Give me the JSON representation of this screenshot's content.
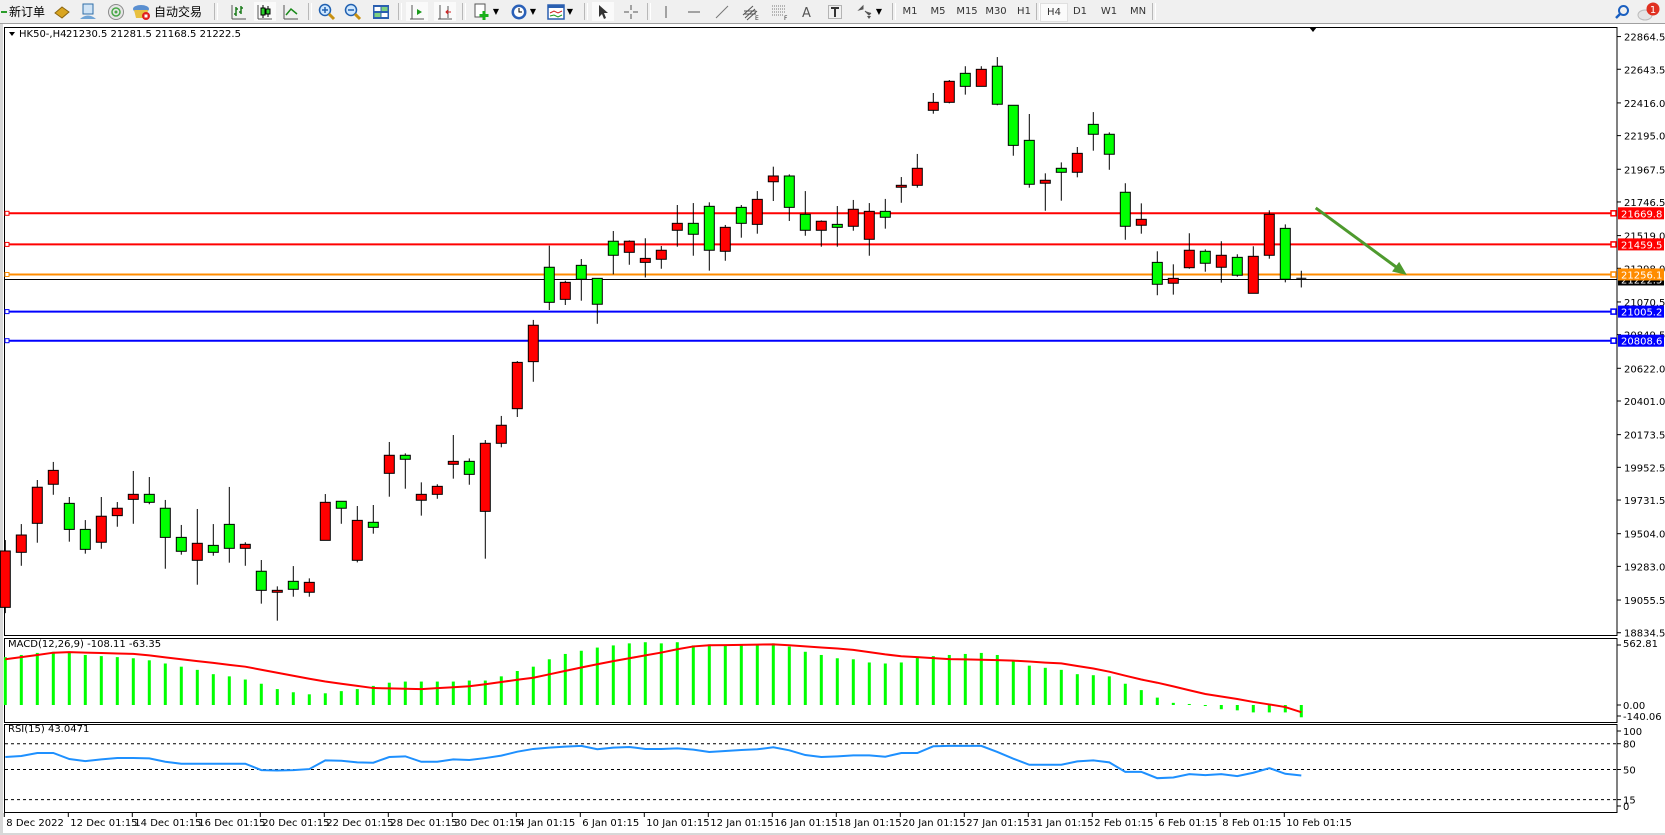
{
  "toolbar": {
    "new_order_label": "新订单",
    "auto_trading_label": "自动交易",
    "timeframes": [
      "M1",
      "M5",
      "M15",
      "M30",
      "H1",
      "H4",
      "D1",
      "W1",
      "MN"
    ],
    "active_timeframe": "H4",
    "notification_count": "1",
    "icons": [
      "new-order-icon",
      "navigator-icon",
      "terminal-icon",
      "signals-icon",
      "auto-trading-icon",
      "bar-chart-icon",
      "candlestick-icon",
      "line-chart-icon",
      "zoom-in-icon",
      "zoom-out-icon",
      "tile-windows-icon",
      "chart-shift-icon",
      "auto-scroll-icon",
      "new-chart-icon",
      "periods-icon",
      "templates-icon",
      "cursor-icon",
      "crosshair-icon",
      "vertical-line-icon",
      "horizontal-line-icon",
      "trendline-icon",
      "fibonacci-channel-icon",
      "fibonacci-retracement-icon",
      "text-icon",
      "text-label-icon",
      "arrows-icon",
      "search-icon",
      "chat-icon"
    ]
  },
  "chart_header": {
    "symbol_label": "HK50-,H4",
    "ohlc_text": "21230.5 21281.5 21168.5 21222.5"
  },
  "chart_data": {
    "type": "candlestick",
    "symbol": "HK50-",
    "timeframe": "H4",
    "up_color": "#ff0000",
    "down_color": "#00ff00",
    "price_ticks": [
      "22864.5",
      "22643.5",
      "22416.0",
      "22195.0",
      "21967.5",
      "21746.5",
      "21519.0",
      "21298.0",
      "21070.5",
      "20849.5",
      "20622.0",
      "20401.0",
      "20173.5",
      "19952.5",
      "19731.5",
      "19504.0",
      "19283.0",
      "19055.5",
      "18834.5"
    ],
    "ylim": [
      18834.5,
      22864.5
    ],
    "ohlc_fields": [
      "open",
      "high",
      "low",
      "close"
    ],
    "candles": [
      [
        19006,
        19461,
        18967,
        19387
      ],
      [
        19378,
        19569,
        19287,
        19495
      ],
      [
        19574,
        19867,
        19443,
        19818
      ],
      [
        19838,
        19989,
        19767,
        19932
      ],
      [
        19709,
        19752,
        19450,
        19533
      ],
      [
        19533,
        19596,
        19369,
        19398
      ],
      [
        19446,
        19752,
        19402,
        19622
      ],
      [
        19626,
        19718,
        19551,
        19676
      ],
      [
        19736,
        19928,
        19571,
        19770
      ],
      [
        19770,
        19887,
        19703,
        19716
      ],
      [
        19676,
        19732,
        19267,
        19479
      ],
      [
        19479,
        19563,
        19362,
        19385
      ],
      [
        19324,
        19671,
        19159,
        19439
      ],
      [
        19425,
        19569,
        19355,
        19378
      ],
      [
        19567,
        19820,
        19308,
        19405
      ],
      [
        19405,
        19446,
        19287,
        19432
      ],
      [
        19250,
        19326,
        19031,
        19121
      ],
      [
        19108,
        19148,
        18916,
        19121
      ],
      [
        19182,
        19285,
        19078,
        19128
      ],
      [
        19108,
        19202,
        19078,
        19175
      ],
      [
        19459,
        19772,
        19459,
        19716
      ],
      [
        19723,
        19723,
        19571,
        19676
      ],
      [
        19324,
        19691,
        19310,
        19594
      ],
      [
        19581,
        19698,
        19504,
        19547
      ],
      [
        19912,
        20124,
        19754,
        20034
      ],
      [
        20034,
        20047,
        19808,
        20007
      ],
      [
        19730,
        19851,
        19626,
        19770
      ],
      [
        19770,
        19838,
        19740,
        19824
      ],
      [
        19973,
        20171,
        19876,
        19993
      ],
      [
        19993,
        20013,
        19835,
        19905
      ],
      [
        19655,
        20137,
        19335,
        20115
      ],
      [
        20115,
        20300,
        20088,
        20237
      ],
      [
        20349,
        20671,
        20293,
        20662
      ],
      [
        20667,
        20949,
        20531,
        20913
      ],
      [
        21305,
        21451,
        21016,
        21068
      ],
      [
        21088,
        21214,
        21050,
        21203
      ],
      [
        21318,
        21361,
        21079,
        21224
      ],
      [
        21230,
        21230,
        20923,
        21055
      ],
      [
        21481,
        21550,
        21257,
        21386
      ],
      [
        21406,
        21487,
        21322,
        21481
      ],
      [
        21338,
        21501,
        21236,
        21365
      ],
      [
        21359,
        21449,
        21295,
        21420
      ],
      [
        21555,
        21726,
        21444,
        21602
      ],
      [
        21602,
        21739,
        21383,
        21528
      ],
      [
        21717,
        21744,
        21282,
        21420
      ],
      [
        21413,
        21591,
        21349,
        21575
      ],
      [
        21710,
        21726,
        21505,
        21602
      ],
      [
        21595,
        21820,
        21532,
        21764
      ],
      [
        21883,
        21985,
        21753,
        21922
      ],
      [
        21922,
        21933,
        21618,
        21710
      ],
      [
        21663,
        21820,
        21518,
        21555
      ],
      [
        21555,
        21622,
        21444,
        21616
      ],
      [
        21595,
        21719,
        21444,
        21575
      ],
      [
        21582,
        21760,
        21552,
        21697
      ],
      [
        21494,
        21739,
        21383,
        21683
      ],
      [
        21683,
        21767,
        21566,
        21643
      ],
      [
        21846,
        21915,
        21741,
        21859
      ],
      [
        21859,
        22071,
        21843,
        21974
      ],
      [
        22366,
        22483,
        22343,
        22420
      ],
      [
        22420,
        22571,
        22413,
        22562
      ],
      [
        22616,
        22664,
        22472,
        22528
      ],
      [
        22528,
        22664,
        22528,
        22643
      ],
      [
        22664,
        22726,
        22400,
        22407
      ],
      [
        22400,
        22400,
        22059,
        22129
      ],
      [
        22163,
        22341,
        21843,
        21866
      ],
      [
        21873,
        21940,
        21687,
        21893
      ],
      [
        21974,
        22014,
        21755,
        21947
      ],
      [
        21947,
        22118,
        21913,
        22075
      ],
      [
        22271,
        22354,
        22093,
        22204
      ],
      [
        22204,
        22217,
        21964,
        22069
      ],
      [
        21812,
        21873,
        21491,
        21582
      ],
      [
        21589,
        21737,
        21532,
        21629
      ],
      [
        21338,
        21413,
        21116,
        21190
      ],
      [
        21197,
        21325,
        21120,
        21230
      ],
      [
        21302,
        21535,
        21295,
        21420
      ],
      [
        21413,
        21426,
        21275,
        21332
      ],
      [
        21305,
        21481,
        21201,
        21386
      ],
      [
        21372,
        21393,
        21241,
        21251
      ],
      [
        21129,
        21447,
        21129,
        21379
      ],
      [
        21386,
        21690,
        21363,
        21663
      ],
      [
        21568,
        21595,
        21203,
        21224
      ],
      [
        21230.5,
        21281.5,
        21168.5,
        21222.5
      ]
    ],
    "horizontal_lines": [
      {
        "price": 21669.8,
        "label": "21669.8",
        "color": "#ff0000"
      },
      {
        "price": 21459.5,
        "label": "21459.5",
        "color": "#ff0000"
      },
      {
        "price": 21256.1,
        "label": "21256.1",
        "color": "#ff8c00"
      },
      {
        "price": 21005.2,
        "label": "21005.2",
        "color": "#0000ff"
      },
      {
        "price": 20808.6,
        "label": "20808.6",
        "color": "#0000ff"
      }
    ],
    "current_price": {
      "price": 21222.5,
      "label": "21222.5",
      "color": "#000000"
    },
    "arrow": {
      "from": {
        "bar": 81.9,
        "price": 21706
      },
      "to": {
        "bar": 87.6,
        "price": 21253
      },
      "color": "#4e9a2e"
    },
    "time_labels": [
      {
        "bar": 0,
        "text": "8 Dec 2022"
      },
      {
        "bar": 4,
        "text": "12 Dec 01:15"
      },
      {
        "bar": 8,
        "text": "14 Dec 01:15"
      },
      {
        "bar": 12,
        "text": "16 Dec 01:15"
      },
      {
        "bar": 16,
        "text": "20 Dec 01:15"
      },
      {
        "bar": 20,
        "text": "22 Dec 01:15"
      },
      {
        "bar": 24,
        "text": "28 Dec 01:15"
      },
      {
        "bar": 28,
        "text": "30 Dec 01:15"
      },
      {
        "bar": 32,
        "text": "4 Jan 01:15"
      },
      {
        "bar": 36,
        "text": "6 Jan 01:15"
      },
      {
        "bar": 40,
        "text": "10 Jan 01:15"
      },
      {
        "bar": 44,
        "text": "12 Jan 01:15"
      },
      {
        "bar": 48,
        "text": "16 Jan 01:15"
      },
      {
        "bar": 52,
        "text": "18 Jan 01:15"
      },
      {
        "bar": 56,
        "text": "20 Jan 01:15"
      },
      {
        "bar": 60,
        "text": "27 Jan 01:15"
      },
      {
        "bar": 64,
        "text": "31 Jan 01:15"
      },
      {
        "bar": 68,
        "text": "2 Feb 01:15"
      },
      {
        "bar": 72,
        "text": "6 Feb 01:15"
      },
      {
        "bar": 76,
        "text": "8 Feb 01:15"
      },
      {
        "bar": 80,
        "text": "10 Feb 01:15"
      }
    ],
    "macd": {
      "label": "MACD(12,26,9) -108.11 -63.35",
      "histogram_color": "#00ff00",
      "signal_color": "#ff0000",
      "ticks": [
        "562.81",
        "0.00",
        "-140.06"
      ],
      "ylim": [
        -140.06,
        562.81
      ],
      "histogram": [
        421,
        440,
        458,
        468,
        458,
        440,
        430,
        421,
        411,
        393,
        365,
        337,
        309,
        271,
        252,
        224,
        187,
        140,
        112,
        94,
        103,
        122,
        140,
        168,
        196,
        206,
        206,
        206,
        206,
        215,
        215,
        252,
        299,
        337,
        402,
        449,
        477,
        505,
        524,
        542,
        552,
        542,
        552,
        524,
        533,
        524,
        533,
        524,
        542,
        514,
        468,
        440,
        411,
        402,
        374,
        365,
        374,
        421,
        430,
        440,
        449,
        458,
        440,
        393,
        346,
        327,
        309,
        271,
        262,
        252,
        187,
        131,
        65,
        19,
        9,
        -9,
        -37,
        -47,
        -65,
        -65,
        -65,
        -108.11
      ],
      "signal": [
        402,
        421,
        440,
        460,
        465,
        461,
        457,
        453,
        450,
        436,
        419,
        402,
        386,
        370,
        353,
        337,
        310,
        284,
        257,
        231,
        207,
        187,
        168,
        149,
        146,
        143,
        140,
        148,
        156,
        165,
        182,
        202,
        222,
        240,
        270,
        300,
        330,
        358,
        386,
        411,
        436,
        461,
        490,
        515,
        525,
        527,
        529,
        531,
        533,
        525,
        516,
        506,
        497,
        485,
        465,
        445,
        429,
        421,
        412,
        403,
        401,
        398,
        395,
        390,
        382,
        373,
        366,
        343,
        321,
        293,
        258,
        224,
        196,
        164,
        130,
        97,
        75,
        53,
        27,
        5,
        -18,
        -63.35
      ]
    },
    "rsi": {
      "label": "RSI(15) 43.0471",
      "color": "#1e90ff",
      "ticks": [
        "100",
        "80",
        "50",
        "15",
        "0"
      ],
      "levels": [
        80,
        50,
        15
      ],
      "ylim": [
        0,
        100
      ],
      "values": [
        64.5,
        65.7,
        69.2,
        69.2,
        62.2,
        59.8,
        61.8,
        63.3,
        63.3,
        62.9,
        59.0,
        56.7,
        56.7,
        56.7,
        56.7,
        56.7,
        49.3,
        48.9,
        49.3,
        50.5,
        60.6,
        60.2,
        58.3,
        57.9,
        64.5,
        65.3,
        59.0,
        59.0,
        61.8,
        61.0,
        63.3,
        66.1,
        70.7,
        73.9,
        75.4,
        76.6,
        77.4,
        73.5,
        75.4,
        76.2,
        73.9,
        73.9,
        74.6,
        73.1,
        70.4,
        71.5,
        72.7,
        73.5,
        75.8,
        72.3,
        66.8,
        64.5,
        65.3,
        66.4,
        66.4,
        64.9,
        69.2,
        69.2,
        77.0,
        77.4,
        77.4,
        77.4,
        70.4,
        62.6,
        55.5,
        55.5,
        55.5,
        59.4,
        60.6,
        58.3,
        47.3,
        47.3,
        39.9,
        40.7,
        44.6,
        43.4,
        44.6,
        42.3,
        46.2,
        51.6,
        45.0,
        43.0471
      ]
    }
  }
}
